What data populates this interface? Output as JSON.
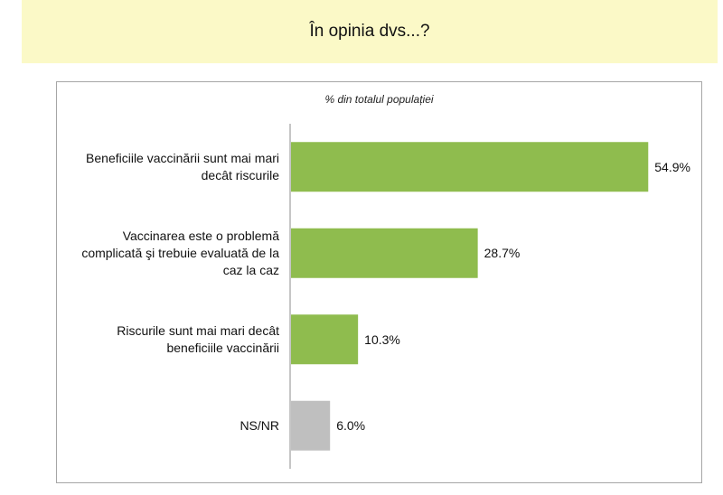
{
  "header": {
    "title": "În opinia dvs...?"
  },
  "chart_data": {
    "type": "bar",
    "orientation": "horizontal",
    "subtitle": "% din totalul populației",
    "categories": [
      "Beneficiile vaccinării sunt mai mari decât riscurile",
      "Vaccinarea este o problemă complicată şi trebuie evaluată de la caz la caz",
      "Riscurile sunt mai mari decât beneficiile vaccinării",
      "NS/NR"
    ],
    "values": [
      54.9,
      28.7,
      10.3,
      6.0
    ],
    "value_labels": [
      "54.9%",
      "28.7%",
      "10.3%",
      "6.0%"
    ],
    "bar_colors": [
      "#8fbc4e",
      "#8fbc4e",
      "#8fbc4e",
      "#bfbfbf"
    ],
    "xlim": [
      0,
      60
    ],
    "grid": false,
    "legend": "none"
  }
}
